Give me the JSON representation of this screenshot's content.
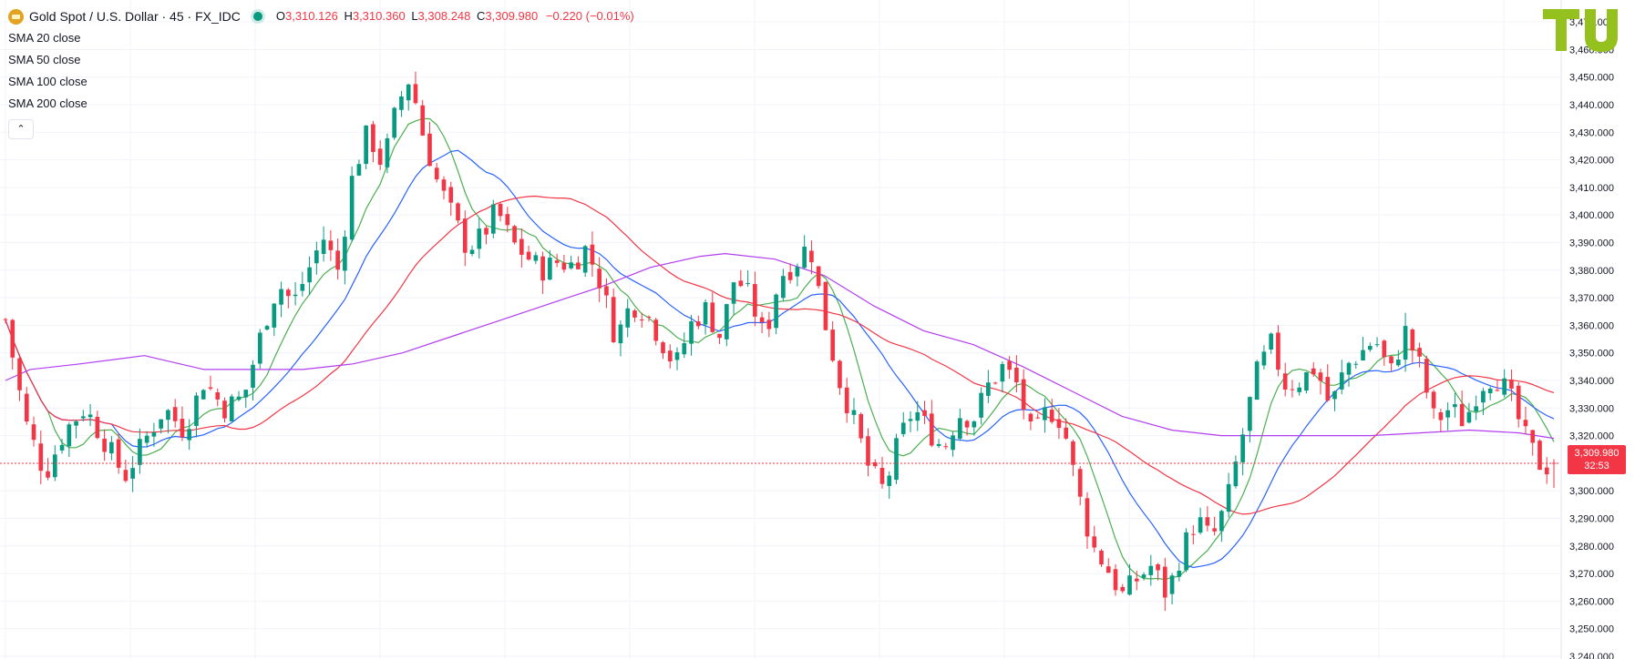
{
  "header": {
    "symbol_title": "Gold Spot / U.S. Dollar · 45 · FX_IDC",
    "ohlc": [
      {
        "k": "O",
        "v": "3,310.126"
      },
      {
        "k": "H",
        "v": "3,310.360"
      },
      {
        "k": "L",
        "v": "3,308.248"
      },
      {
        "k": "C",
        "v": "3,309.980"
      }
    ],
    "change": "−0.220 (−0.01%)",
    "indicators": [
      "SMA 20 close",
      "SMA 50 close",
      "SMA 100 close",
      "SMA 200 close"
    ],
    "collapse_icon": "chevron-up-icon"
  },
  "last_price": {
    "value": "3,309.980",
    "countdown": "32:53"
  },
  "colors": {
    "up": "#089981",
    "down": "#f23645",
    "sma20": "#4caf50",
    "sma50": "#2962ff",
    "sma100": "#f23645",
    "sma200": "#b23df0",
    "grid": "#f0f3fa",
    "axis_text": "#131722",
    "brand": "#95c11f"
  },
  "chart_data": {
    "type": "candlestick",
    "title": "Gold Spot / U.S. Dollar · 45 · FX_IDC",
    "y_axis_side": "right",
    "ylim": [
      3240,
      3472
    ],
    "y_ticks": [
      3240,
      3250,
      3260,
      3270,
      3280,
      3290,
      3300,
      3310,
      3320,
      3330,
      3340,
      3350,
      3360,
      3370,
      3380,
      3390,
      3400,
      3410,
      3420,
      3430,
      3440,
      3450,
      3460,
      3470
    ],
    "grid": true,
    "legend": "top-left",
    "candle_count": 220,
    "price_path": [
      [
        0,
        3362
      ],
      [
        8,
        3325
      ],
      [
        16,
        3306
      ],
      [
        24,
        3322
      ],
      [
        32,
        3330
      ],
      [
        40,
        3318
      ],
      [
        48,
        3305
      ],
      [
        56,
        3318
      ],
      [
        64,
        3330
      ],
      [
        72,
        3322
      ],
      [
        80,
        3340
      ],
      [
        88,
        3330
      ],
      [
        96,
        3334
      ],
      [
        104,
        3360
      ],
      [
        110,
        3375
      ],
      [
        116,
        3368
      ],
      [
        122,
        3380
      ],
      [
        128,
        3392
      ],
      [
        134,
        3380
      ],
      [
        140,
        3415
      ],
      [
        146,
        3430
      ],
      [
        152,
        3418
      ],
      [
        158,
        3440
      ],
      [
        163,
        3450
      ],
      [
        168,
        3430
      ],
      [
        174,
        3412
      ],
      [
        180,
        3400
      ],
      [
        186,
        3388
      ],
      [
        192,
        3392
      ],
      [
        198,
        3402
      ],
      [
        204,
        3390
      ],
      [
        210,
        3385
      ],
      [
        216,
        3380
      ],
      [
        222,
        3383
      ],
      [
        228,
        3382
      ],
      [
        234,
        3388
      ],
      [
        240,
        3375
      ],
      [
        246,
        3355
      ],
      [
        252,
        3368
      ],
      [
        258,
        3365
      ],
      [
        264,
        3355
      ],
      [
        270,
        3345
      ],
      [
        276,
        3360
      ],
      [
        282,
        3366
      ],
      [
        288,
        3356
      ],
      [
        294,
        3378
      ],
      [
        300,
        3370
      ],
      [
        306,
        3355
      ],
      [
        312,
        3378
      ],
      [
        318,
        3382
      ],
      [
        324,
        3390
      ],
      [
        330,
        3362
      ],
      [
        336,
        3340
      ],
      [
        342,
        3325
      ],
      [
        348,
        3308
      ],
      [
        354,
        3300
      ],
      [
        360,
        3318
      ],
      [
        366,
        3330
      ],
      [
        372,
        3322
      ],
      [
        378,
        3315
      ],
      [
        384,
        3328
      ],
      [
        390,
        3326
      ],
      [
        396,
        3338
      ],
      [
        402,
        3345
      ],
      [
        408,
        3338
      ],
      [
        414,
        3318
      ],
      [
        420,
        3330
      ],
      [
        426,
        3325
      ],
      [
        432,
        3300
      ],
      [
        438,
        3280
      ],
      [
        444,
        3272
      ],
      [
        450,
        3262
      ],
      [
        456,
        3268
      ],
      [
        462,
        3273
      ],
      [
        468,
        3262
      ],
      [
        474,
        3278
      ],
      [
        480,
        3290
      ],
      [
        486,
        3282
      ],
      [
        492,
        3295
      ],
      [
        498,
        3318
      ],
      [
        504,
        3342
      ],
      [
        510,
        3353
      ],
      [
        516,
        3338
      ],
      [
        522,
        3340
      ],
      [
        528,
        3345
      ],
      [
        534,
        3330
      ],
      [
        540,
        3345
      ],
      [
        546,
        3350
      ],
      [
        552,
        3355
      ],
      [
        558,
        3342
      ],
      [
        564,
        3358
      ],
      [
        570,
        3345
      ],
      [
        576,
        3325
      ],
      [
        582,
        3330
      ],
      [
        588,
        3325
      ],
      [
        594,
        3338
      ],
      [
        600,
        3342
      ],
      [
        606,
        3335
      ],
      [
        612,
        3320
      ],
      [
        618,
        3310
      ],
      [
        624,
        3308
      ]
    ],
    "series": [
      {
        "name": "SMA 20 close",
        "color": "#4caf50"
      },
      {
        "name": "SMA 50 close",
        "color": "#2962ff"
      },
      {
        "name": "SMA 100 close",
        "color": "#f23645"
      },
      {
        "name": "SMA 200 close",
        "color": "#b23df0",
        "path": [
          [
            0,
            3340
          ],
          [
            10,
            3344
          ],
          [
            30,
            3346
          ],
          [
            56,
            3349
          ],
          [
            80,
            3344
          ],
          [
            100,
            3344
          ],
          [
            120,
            3344
          ],
          [
            140,
            3346
          ],
          [
            160,
            3350
          ],
          [
            180,
            3356
          ],
          [
            200,
            3362
          ],
          [
            220,
            3368
          ],
          [
            240,
            3374
          ],
          [
            260,
            3381
          ],
          [
            280,
            3385
          ],
          [
            290,
            3386
          ],
          [
            310,
            3384
          ],
          [
            330,
            3378
          ],
          [
            350,
            3367
          ],
          [
            370,
            3358
          ],
          [
            390,
            3353
          ],
          [
            410,
            3345
          ],
          [
            430,
            3336
          ],
          [
            450,
            3327
          ],
          [
            470,
            3322
          ],
          [
            490,
            3320
          ],
          [
            510,
            3320
          ],
          [
            530,
            3320
          ],
          [
            550,
            3320
          ],
          [
            570,
            3321
          ],
          [
            590,
            3322
          ],
          [
            610,
            3321
          ],
          [
            624,
            3319
          ]
        ]
      }
    ]
  }
}
